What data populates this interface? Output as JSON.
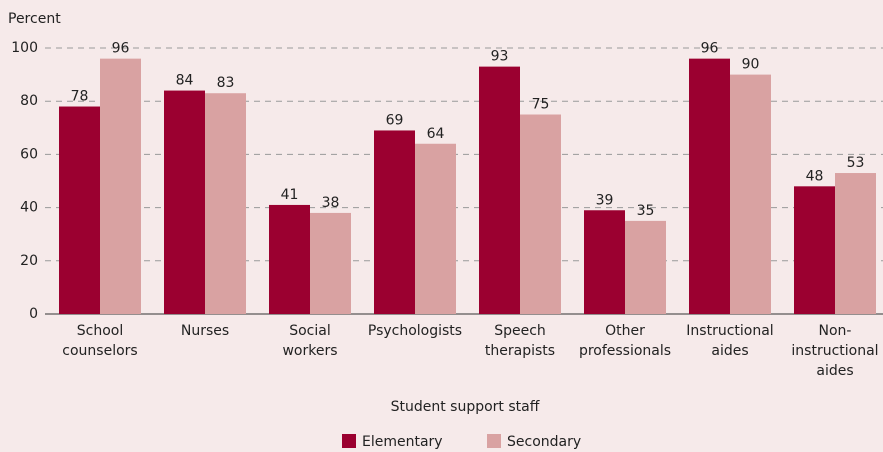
{
  "chart_data": {
    "type": "bar",
    "y_label": "Percent",
    "x_label": "Student support staff",
    "categories": [
      "School\ncounselors",
      "Nurses",
      "Social\nworkers",
      "Psychologists",
      "Speech\ntherapists",
      "Other\nprofessionals",
      "Instructional\naides",
      "Non-\ninstructional\naides"
    ],
    "series": [
      {
        "name": "Elementary",
        "color": "#9b0030",
        "values": [
          78,
          84,
          41,
          69,
          93,
          39,
          96,
          48
        ]
      },
      {
        "name": "Secondary",
        "color": "#d9a2a2",
        "values": [
          96,
          83,
          38,
          64,
          75,
          35,
          90,
          53
        ]
      }
    ],
    "ylim": [
      0,
      100
    ],
    "yticks": [
      0,
      20,
      40,
      60,
      80,
      100
    ],
    "grid": true
  }
}
